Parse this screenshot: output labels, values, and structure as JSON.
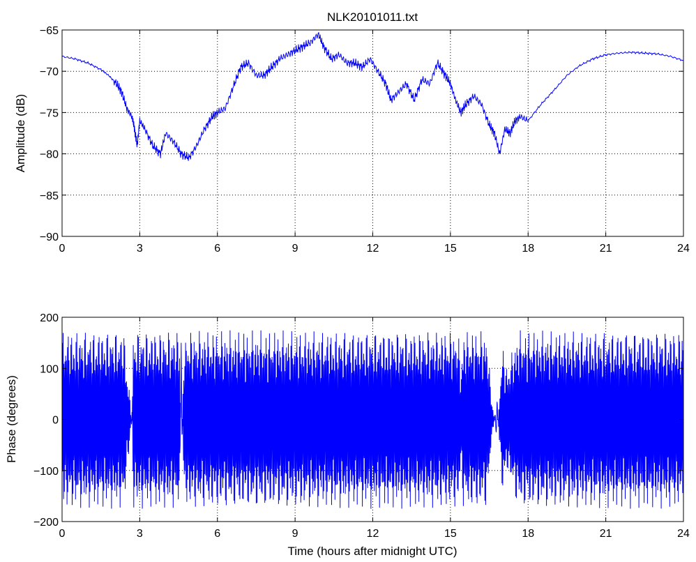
{
  "chart_data": [
    {
      "type": "line",
      "title": "NLK20101011.txt",
      "xlabel": "",
      "ylabel": "Amplitude (dB)",
      "xlim": [
        0,
        24
      ],
      "ylim": [
        -90,
        -65
      ],
      "xticks": [
        0,
        3,
        6,
        9,
        12,
        15,
        18,
        21,
        24
      ],
      "yticks": [
        -90,
        -85,
        -80,
        -75,
        -70,
        -65
      ],
      "grid": true,
      "color": "#0000ff",
      "series": [
        {
          "x": [
            0,
            0.5,
            1,
            1.5,
            1.8,
            2.1,
            2.3,
            2.5,
            2.7,
            2.8,
            2.9,
            3.0,
            3.2,
            3.5,
            3.8,
            4.0,
            4.3,
            4.6,
            4.9,
            5.2,
            5.5,
            5.8,
            6.0,
            6.3,
            6.6,
            6.9,
            7.2,
            7.5,
            7.8,
            8.1,
            8.4,
            8.7,
            9.0,
            9.3,
            9.6,
            9.9,
            10.1,
            10.4,
            10.7,
            11.0,
            11.3,
            11.6,
            11.9,
            12.2,
            12.5,
            12.7,
            13.0,
            13.3,
            13.6,
            13.9,
            14.2,
            14.5,
            14.8,
            15.0,
            15.2,
            15.4,
            15.6,
            15.9,
            16.2,
            16.5,
            16.7,
            16.9,
            17.1,
            17.3,
            17.5,
            17.7,
            18.0,
            18.5,
            19.0,
            19.5,
            20.0,
            20.5,
            21.0,
            21.5,
            22.0,
            22.5,
            23.0,
            23.5,
            24.0
          ],
          "y": [
            -68.2,
            -68.5,
            -69.0,
            -69.8,
            -70.5,
            -71.5,
            -72.5,
            -74.5,
            -75.5,
            -77.0,
            -79.0,
            -76.0,
            -77.0,
            -79.0,
            -80.0,
            -77.5,
            -78.5,
            -80.0,
            -80.5,
            -79.0,
            -77.0,
            -75.5,
            -75.0,
            -74.5,
            -72.0,
            -69.5,
            -69.0,
            -70.5,
            -70.5,
            -69.5,
            -68.5,
            -68.0,
            -67.5,
            -67.0,
            -66.5,
            -65.5,
            -67.0,
            -68.5,
            -68.0,
            -69.0,
            -69.0,
            -69.5,
            -68.5,
            -70.0,
            -71.5,
            -73.5,
            -72.5,
            -71.5,
            -73.5,
            -71.0,
            -71.5,
            -69.0,
            -70.5,
            -71.5,
            -73.5,
            -75.0,
            -74.0,
            -73.0,
            -74.0,
            -76.5,
            -77.5,
            -80.0,
            -77.0,
            -77.5,
            -76.0,
            -75.5,
            -76.0,
            -74.0,
            -72.3,
            -70.5,
            -69.3,
            -68.5,
            -68.0,
            -67.8,
            -67.7,
            -67.8,
            -67.9,
            -68.2,
            -68.7
          ]
        }
      ]
    },
    {
      "type": "line",
      "title": "",
      "xlabel": "Time (hours after midnight UTC)",
      "ylabel": "Phase (degrees)",
      "xlim": [
        0,
        24
      ],
      "ylim": [
        -200,
        200
      ],
      "xticks": [
        0,
        3,
        6,
        9,
        12,
        15,
        18,
        21,
        24
      ],
      "yticks": [
        -200,
        -100,
        0,
        100,
        200
      ],
      "grid": true,
      "color": "#0000ff",
      "series": [
        {
          "wrap_range": [
            -180,
            180
          ],
          "x": [
            0,
            2.4,
            2.5,
            2.6,
            2.7,
            2.75,
            4.55,
            4.6,
            4.7,
            4.85,
            15.3,
            15.4,
            15.5,
            16.4,
            16.6,
            16.8,
            17.0,
            17.2,
            17.6,
            24.0
          ],
          "y": [
            175,
            175,
            100,
            60,
            -30,
            175,
            175,
            -150,
            150,
            175,
            175,
            100,
            175,
            175,
            40,
            -40,
            150,
            100,
            175,
            175
          ]
        }
      ]
    }
  ]
}
